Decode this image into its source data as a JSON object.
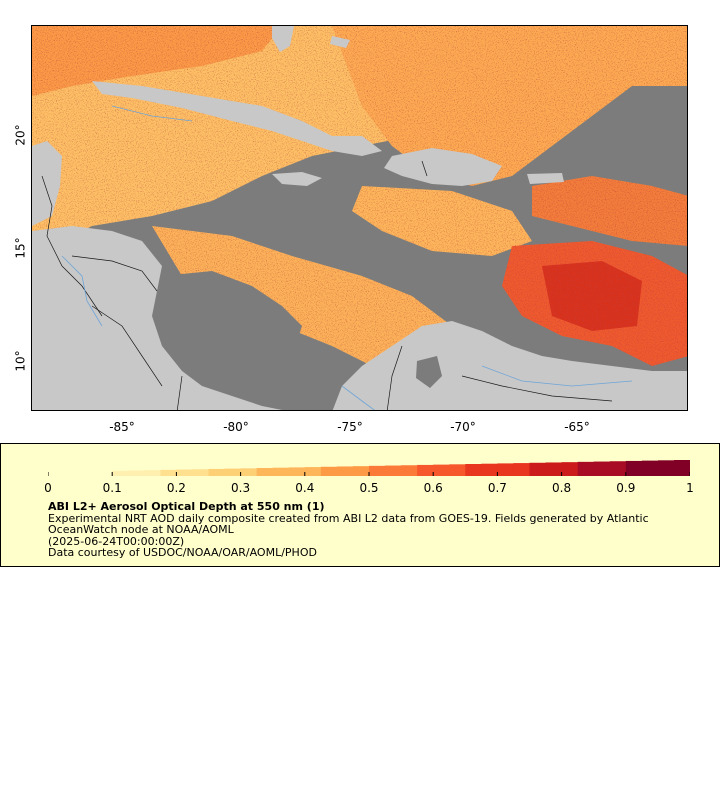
{
  "map": {
    "name": "Caribbean aerosol optical depth map",
    "lat_ticks": [
      "20°",
      "15°",
      "10°"
    ],
    "lon_ticks": [
      "-85°",
      "-80°",
      "-75°",
      "-70°",
      "-65°"
    ],
    "colors": {
      "land": "#c8c8c8",
      "no_data": "#7c7c7c",
      "borders": "#1a1a1a",
      "rivers": "#6fa5d8"
    }
  },
  "legend": {
    "ticks": [
      "0",
      "0.1",
      "0.2",
      "0.3",
      "0.4",
      "0.5",
      "0.6",
      "0.7",
      "0.8",
      "0.9",
      "1"
    ],
    "title": "ABI L2+ Aerosol Optical Depth at 550 nm (1)",
    "description_1": "Experimental NRT AOD daily composite created from ABI L2 data from GOES-19. Fields generated by Atlantic",
    "description_2": "OceanWatch node at NOAA/AOML",
    "date": "(2025-06-24T00:00:00Z)",
    "credit": "Data courtesy of USDOC/NOAA/OAR/AOML/PHOD",
    "colormap": [
      "#ffffcc",
      "#fff0b0",
      "#ffe08f",
      "#fed076",
      "#feb65a",
      "#fd9a45",
      "#fc7a37",
      "#f6582b",
      "#e8361f",
      "#cc1b1b",
      "#a80c24",
      "#800026"
    ]
  }
}
